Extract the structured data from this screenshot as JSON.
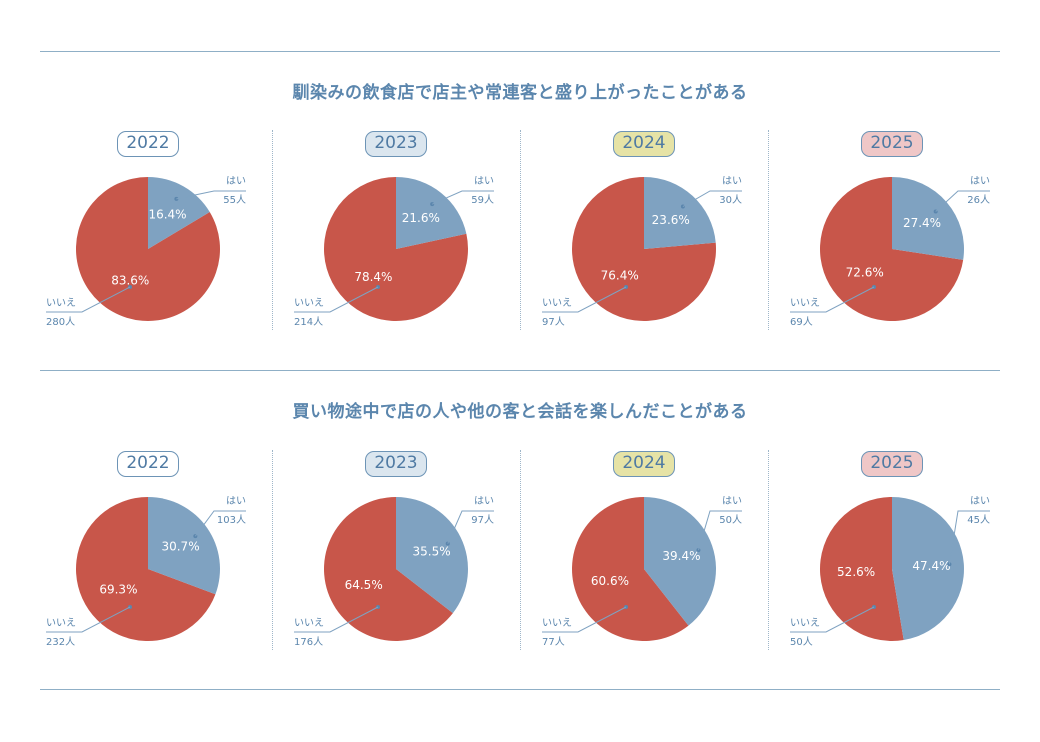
{
  "colors": {
    "yes": "#7fa2c1",
    "no": "#c8564a",
    "badge_fill": [
      "#ffffff",
      "#dbe6ef",
      "#e6e3a6",
      "#efc7c7"
    ]
  },
  "labels": {
    "yes": "はい",
    "no": "いいえ"
  },
  "sections": [
    {
      "title": "馴染みの飲食店で店主や常連客と盛り上がったことがある",
      "charts": [
        {
          "year": "2022",
          "yes_pct": "16.4%",
          "no_pct": "83.6%",
          "yes_count": "55人",
          "no_count": "280人"
        },
        {
          "year": "2023",
          "yes_pct": "21.6%",
          "no_pct": "78.4%",
          "yes_count": "59人",
          "no_count": "214人"
        },
        {
          "year": "2024",
          "yes_pct": "23.6%",
          "no_pct": "76.4%",
          "yes_count": "30人",
          "no_count": "97人"
        },
        {
          "year": "2025",
          "yes_pct": "27.4%",
          "no_pct": "72.6%",
          "yes_count": "26人",
          "no_count": "69人"
        }
      ]
    },
    {
      "title": "買い物途中で店の人や他の客と会話を楽しんだことがある",
      "charts": [
        {
          "year": "2022",
          "yes_pct": "30.7%",
          "no_pct": "69.3%",
          "yes_count": "103人",
          "no_count": "232人"
        },
        {
          "year": "2023",
          "yes_pct": "35.5%",
          "no_pct": "64.5%",
          "yes_count": "97人",
          "no_count": "176人"
        },
        {
          "year": "2024",
          "yes_pct": "39.4%",
          "no_pct": "60.6%",
          "yes_count": "50人",
          "no_count": "77人"
        },
        {
          "year": "2025",
          "yes_pct": "47.4%",
          "no_pct": "52.6%",
          "yes_count": "45人",
          "no_count": "50人"
        }
      ]
    }
  ],
  "chart_data": [
    {
      "type": "pie",
      "title": "馴染みの飲食店で店主や常連客と盛り上がったことがある 2022",
      "categories": [
        "はい",
        "いいえ"
      ],
      "values": [
        16.4,
        83.6
      ],
      "counts": [
        55,
        280
      ]
    },
    {
      "type": "pie",
      "title": "馴染みの飲食店で店主や常連客と盛り上がったことがある 2023",
      "categories": [
        "はい",
        "いいえ"
      ],
      "values": [
        21.6,
        78.4
      ],
      "counts": [
        59,
        214
      ]
    },
    {
      "type": "pie",
      "title": "馴染みの飲食店で店主や常連客と盛り上がったことがある 2024",
      "categories": [
        "はい",
        "いいえ"
      ],
      "values": [
        23.6,
        76.4
      ],
      "counts": [
        30,
        97
      ]
    },
    {
      "type": "pie",
      "title": "馴染みの飲食店で店主や常連客と盛り上がったことがある 2025",
      "categories": [
        "はい",
        "いいえ"
      ],
      "values": [
        27.4,
        72.6
      ],
      "counts": [
        26,
        69
      ]
    },
    {
      "type": "pie",
      "title": "買い物途中で店の人や他の客と会話を楽しんだことがある 2022",
      "categories": [
        "はい",
        "いいえ"
      ],
      "values": [
        30.7,
        69.3
      ],
      "counts": [
        103,
        232
      ]
    },
    {
      "type": "pie",
      "title": "買い物途中で店の人や他の客と会話を楽しんだことがある 2023",
      "categories": [
        "はい",
        "いいえ"
      ],
      "values": [
        35.5,
        64.5
      ],
      "counts": [
        97,
        176
      ]
    },
    {
      "type": "pie",
      "title": "買い物途中で店の人や他の客と会話を楽しんだことがある 2024",
      "categories": [
        "はい",
        "いいえ"
      ],
      "values": [
        39.4,
        60.6
      ],
      "counts": [
        50,
        77
      ]
    },
    {
      "type": "pie",
      "title": "買い物途中で店の人や他の客と会話を楽しんだことがある 2025",
      "categories": [
        "はい",
        "いいえ"
      ],
      "values": [
        47.4,
        52.6
      ],
      "counts": [
        45,
        50
      ]
    }
  ]
}
